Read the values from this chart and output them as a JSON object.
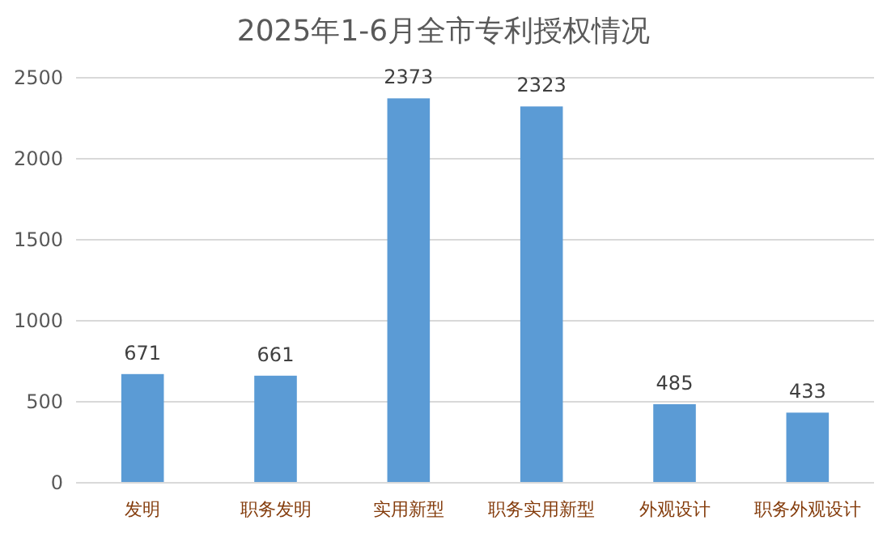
{
  "chart_data": {
    "type": "bar",
    "title": "2025年1-6月全市专利授权情况",
    "categories": [
      "发明",
      "职务发明",
      "实用新型",
      "职务实用新型",
      "外观设计",
      "职务外观设计"
    ],
    "values": [
      671,
      661,
      2373,
      2323,
      485,
      433
    ],
    "color": "#5b9bd5",
    "ylim": [
      0,
      2500
    ],
    "yticks": [
      0,
      500,
      1000,
      1500,
      2000,
      2500
    ],
    "grid": "y",
    "data_labels": true
  }
}
